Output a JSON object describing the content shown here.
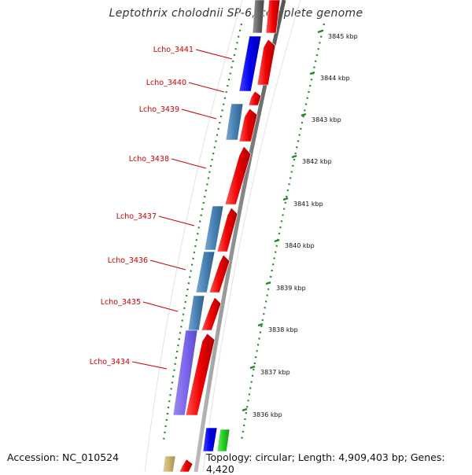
{
  "title": "Leptothrix cholodnii SP-6, complete genome",
  "accession": "Accession: NC_010524",
  "summary": "Topology: circular; Length: 4,909,403 bp; Genes: 4,420",
  "kbp_ticks": [
    "3845 kbp",
    "3844 kbp",
    "3843 kbp",
    "3842 kbp",
    "3841 kbp",
    "3840 kbp",
    "3839 kbp",
    "3838 kbp",
    "3837 kbp",
    "3836 kbp"
  ],
  "gene_labels": [
    "Lcho_3441",
    "Lcho_3440",
    "Lcho_3439",
    "Lcho_3438",
    "Lcho_3437",
    "Lcho_3436",
    "Lcho_3435",
    "Lcho_3434"
  ],
  "colors": {
    "forward_gene": "#ee0000",
    "cog_blue": "#0000ee",
    "cog_steelblue": "#4682b4",
    "cog_purple": "#7b68ee",
    "cog_green": "#22cc22",
    "cog_khaki": "#c8b46e",
    "cog_gray": "#666666",
    "ruler": "#228822",
    "label": "#cc0000"
  }
}
